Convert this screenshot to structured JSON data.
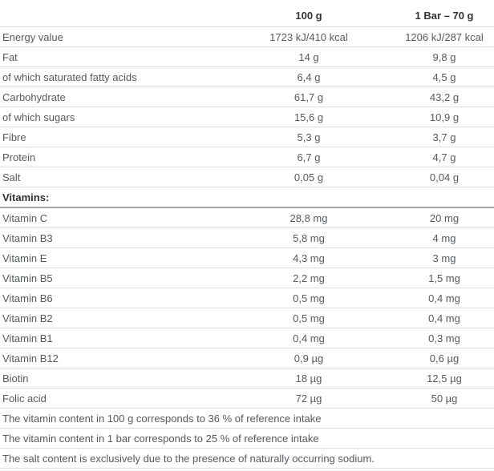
{
  "table": {
    "columns": [
      "",
      "100 g",
      "1 Bar – 70 g"
    ],
    "rows": [
      {
        "label": "Energy value",
        "per100": "1723 kJ/410 kcal",
        "perBar": "1206 kJ/287 kcal"
      },
      {
        "label": "Fat",
        "per100": "14 g",
        "perBar": "9,8 g"
      },
      {
        "label": "of which saturated fatty acids",
        "per100": "6,4 g",
        "perBar": "4,5 g"
      },
      {
        "label": "Carbohydrate",
        "per100": "61,7 g",
        "perBar": "43,2 g"
      },
      {
        "label": "of which sugars",
        "per100": "15,6 g",
        "perBar": "10,9 g"
      },
      {
        "label": "Fibre",
        "per100": "5,3 g",
        "perBar": "3,7 g"
      },
      {
        "label": "Protein",
        "per100": "6,7 g",
        "perBar": "4,7 g"
      },
      {
        "label": "Salt",
        "per100": "0,05 g",
        "perBar": "0,04 g"
      },
      {
        "label": "Vitamins:",
        "type": "section"
      },
      {
        "label": "Vitamin C",
        "per100": "28,8 mg",
        "perBar": "20 mg"
      },
      {
        "label": "Vitamin B3",
        "per100": "5,8 mg",
        "perBar": "4 mg"
      },
      {
        "label": "Vitamin E",
        "per100": "4,3 mg",
        "perBar": "3 mg"
      },
      {
        "label": "Vitamin B5",
        "per100": "2,2 mg",
        "perBar": "1,5 mg"
      },
      {
        "label": "Vitamin B6",
        "per100": "0,5 mg",
        "perBar": "0,4 mg"
      },
      {
        "label": "Vitamin B2",
        "per100": "0,5 mg",
        "perBar": "0,4 mg"
      },
      {
        "label": "Vitamin B1",
        "per100": "0,4 mg",
        "perBar": "0,3 mg"
      },
      {
        "label": "Vitamin B12",
        "per100": "0,9 µg",
        "perBar": "0,6 µg"
      },
      {
        "label": "Biotin",
        "per100": "18 µg",
        "perBar": "12,5 µg"
      },
      {
        "label": "Folic acid",
        "per100": "72 µg",
        "perBar": "50 µg"
      }
    ],
    "footnotes": [
      "The vitamin content in 100 g corresponds to 36 % of reference intake",
      "The vitamin content in 1 bar corresponds to 25 % of reference intake",
      "The salt content is exclusively due to the presence of naturally occurring sodium."
    ]
  },
  "colors": {
    "background": "#ffffff",
    "text": "#555a5e",
    "heading_text": "#333333",
    "row_border": "#dedede",
    "section_border": "#a3a3a3"
  }
}
